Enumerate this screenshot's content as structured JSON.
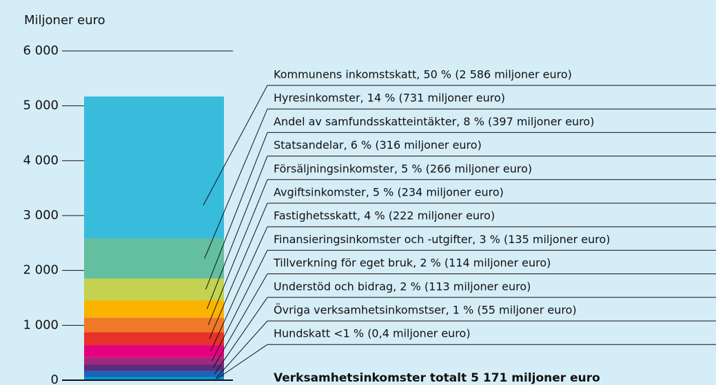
{
  "chart_data": {
    "type": "bar",
    "stacked": true,
    "y_label": "Miljoner euro",
    "ylim": [
      0,
      6000
    ],
    "yticks": [
      0,
      {
        "value": 1000,
        "label": "1 000"
      },
      {
        "value": 2000,
        "label": "2 000"
      },
      {
        "value": 3000,
        "label": "3 000"
      },
      {
        "value": 4000,
        "label": "4 000"
      },
      {
        "value": 5000,
        "label": "5 000"
      },
      {
        "value": 6000,
        "label": "6 000"
      }
    ],
    "series": [
      {
        "name": "Kommunens inkomstskatt, 50 % (2 586 miljoner euro)",
        "color": "#37bcdc",
        "values": [
          2586
        ]
      },
      {
        "name": "Hyresinkomster, 14 % (731 miljoner euro)",
        "color": "#64bea0",
        "values": [
          731
        ]
      },
      {
        "name": "Andel av samfundsskatteintäkter, 8 % (397 miljoner euro)",
        "color": "#c3d250",
        "values": [
          397
        ]
      },
      {
        "name": "Statsandelar, 6 % (316 miljoner euro)",
        "color": "#fab400",
        "values": [
          316
        ]
      },
      {
        "name": "Försäljningsinkomster, 5 % (266 miljoner euro)",
        "color": "#f07828",
        "values": [
          266
        ]
      },
      {
        "name": "Avgiftsinkomster, 5 % (234 miljoner euro)",
        "color": "#e63228",
        "values": [
          234
        ]
      },
      {
        "name": "Fastighetsskatt, 4 % (222 miljoner euro)",
        "color": "#e6007e",
        "values": [
          222
        ]
      },
      {
        "name": "Finansieringsinkomster och -utgifter, 3 % (135 miljoner euro)",
        "color": "#a0287d",
        "values": [
          135
        ]
      },
      {
        "name": "Tillverkning för eget bruk, 2 % (114 miljoner euro)",
        "color": "#5a2d82",
        "values": [
          114
        ]
      },
      {
        "name": "Understöd och bidrag, 2 % (113 miljoner euro)",
        "color": "#1a64b4",
        "values": [
          113
        ]
      },
      {
        "name": "Övriga verksamhetsinkomstser, 1 % (55 miljoner euro)",
        "color": "#0096d7",
        "values": [
          55
        ]
      },
      {
        "name": "Hundskatt <1 % (0,4 miljoner euro)",
        "color": "#00aae6",
        "values": [
          0.4
        ]
      }
    ],
    "total_label": "Verksamhetsinkomster totalt 5 171 miljoner euro"
  }
}
